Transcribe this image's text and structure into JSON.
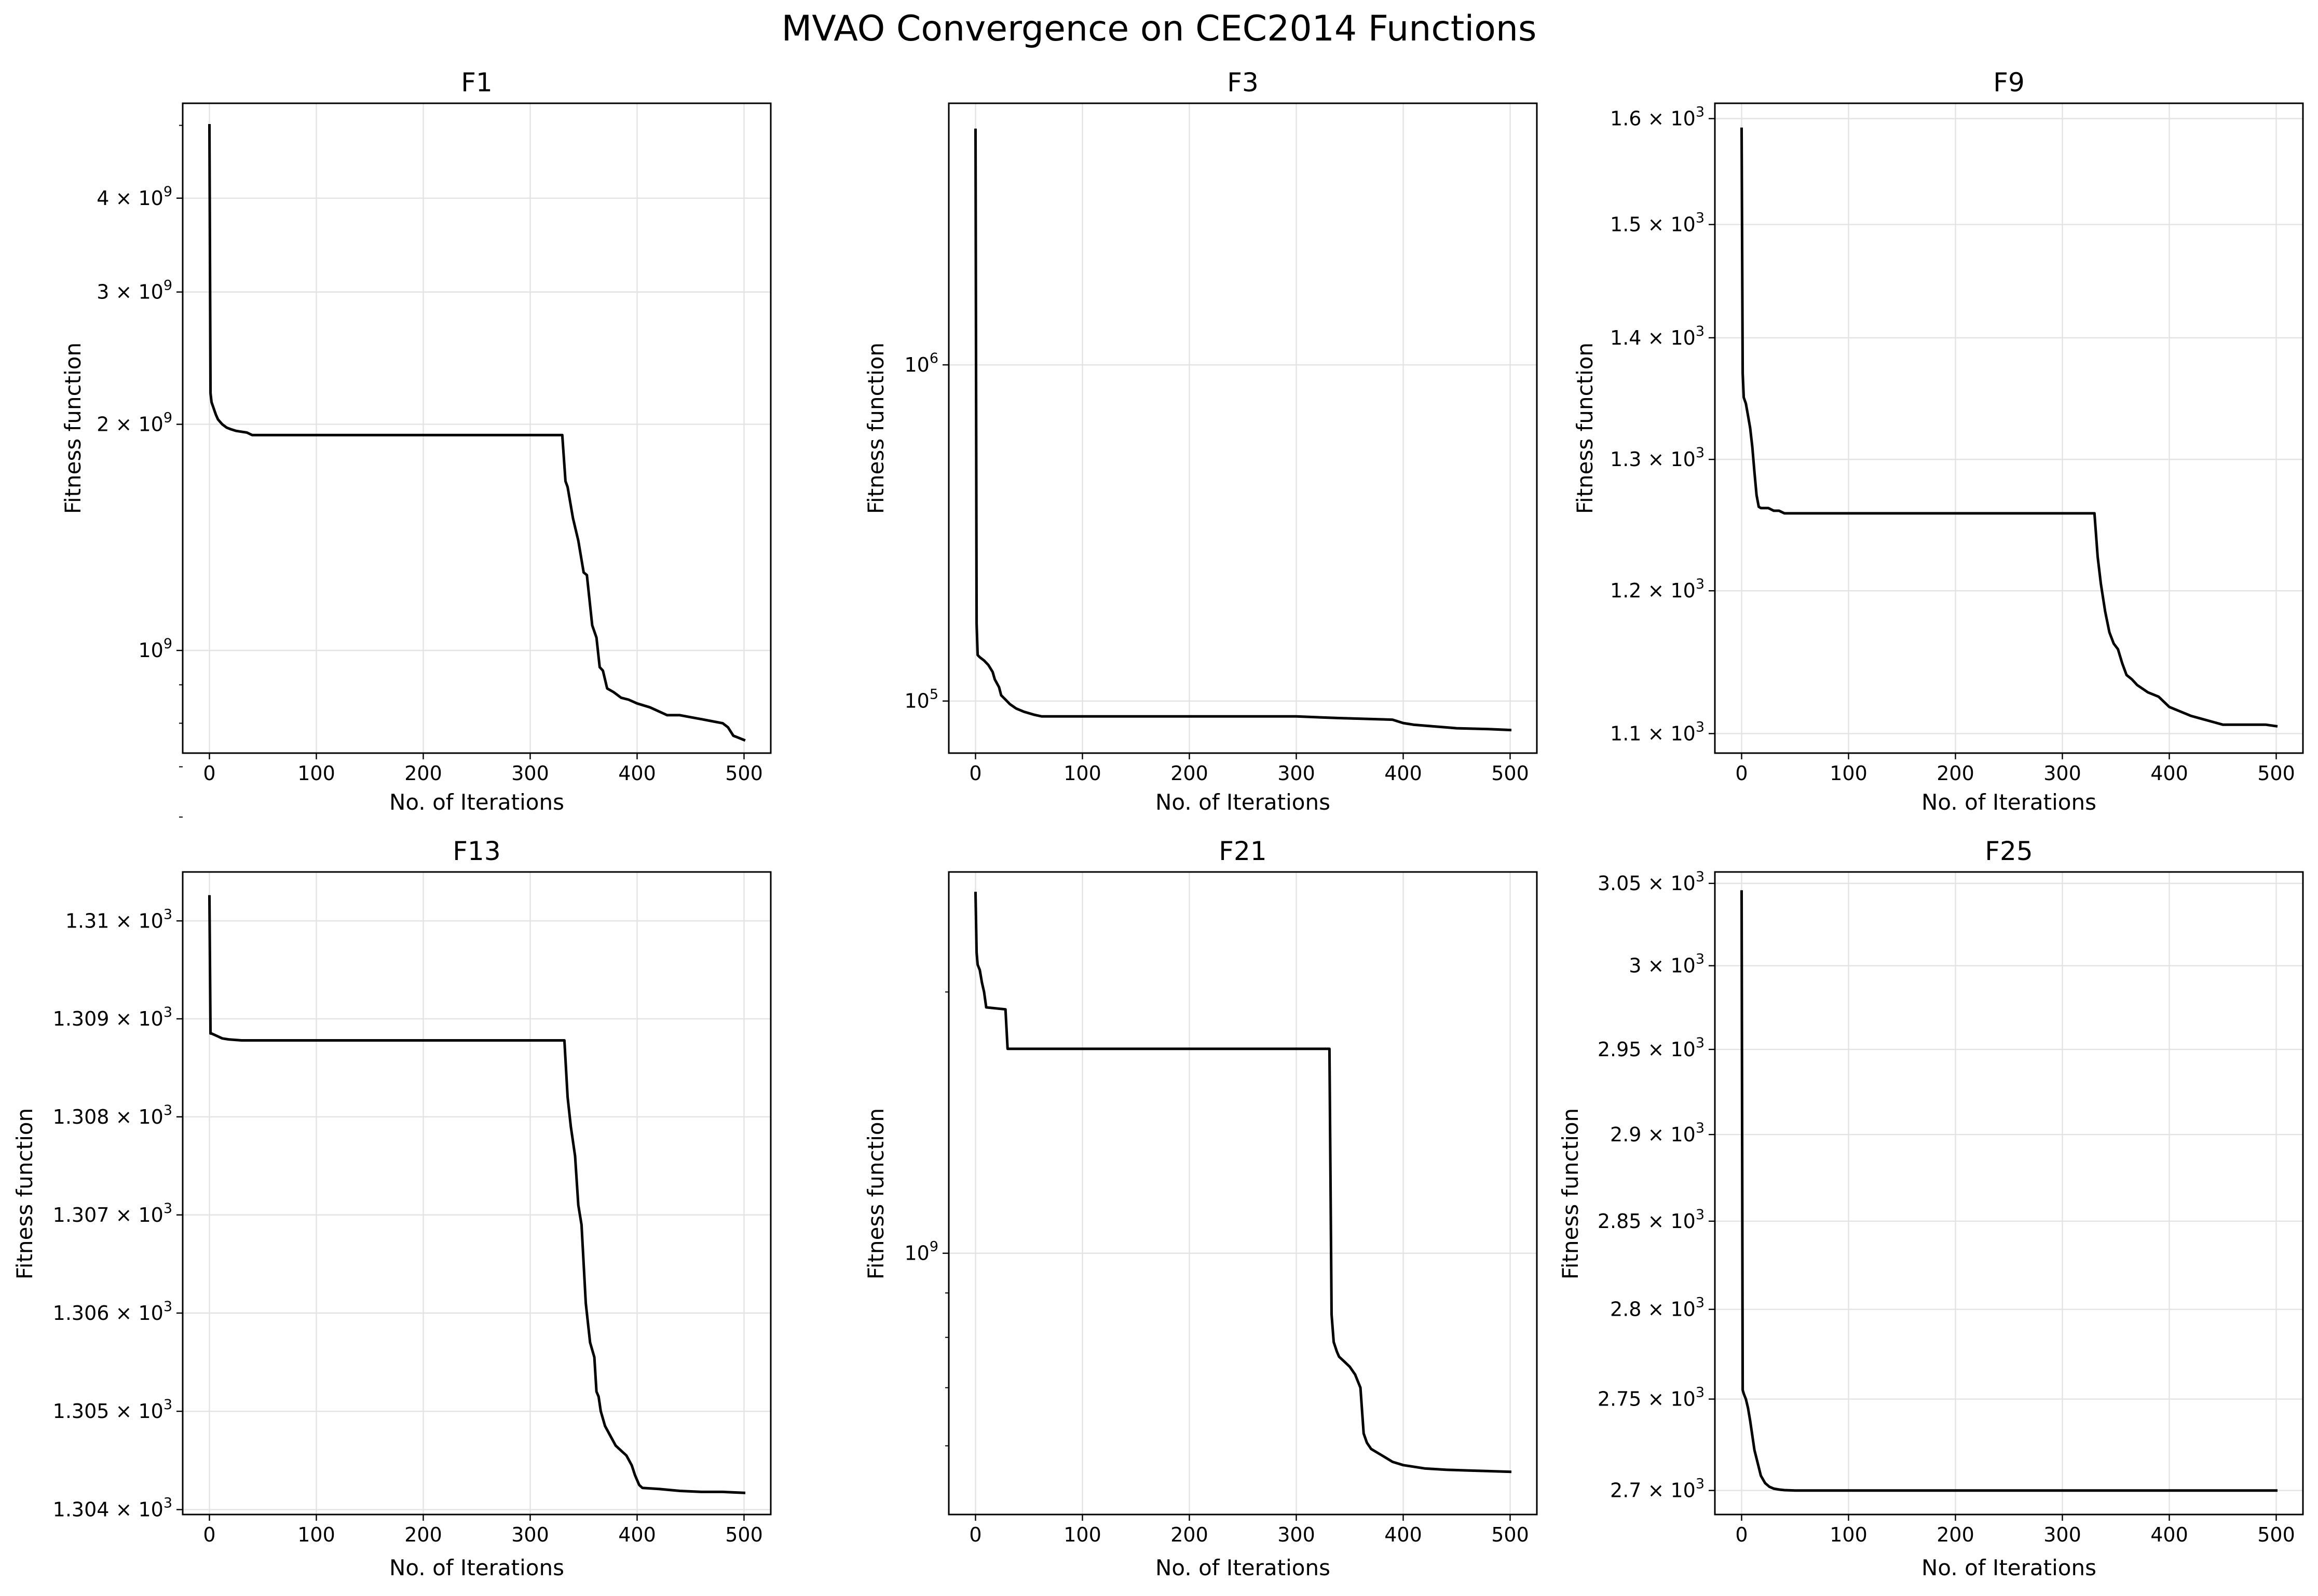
{
  "figure": {
    "title": "MVAO Convergence on CEC2014 Functions"
  },
  "chart_data": [
    {
      "type": "line",
      "title": "F1",
      "xlabel": "No. of Iterations",
      "ylabel": "Fitness function",
      "xlim": [
        -25,
        525
      ],
      "ylim": [
        730000000,
        5350000000
      ],
      "yscale": "log",
      "grid": true,
      "xticks": [
        0,
        100,
        200,
        300,
        400,
        500
      ],
      "xtick_labels": [
        "0",
        "100",
        "200",
        "300",
        "400",
        "500"
      ],
      "yticks": [
        1000000000,
        2000000000,
        3000000000,
        4000000000
      ],
      "ytick_labels": [
        {
          "mant": "",
          "exp": "9"
        },
        {
          "mant": "2",
          "exp": "9"
        },
        {
          "mant": "3",
          "exp": "9"
        },
        {
          "mant": "4",
          "exp": "9"
        }
      ],
      "yminor": [
        600000000,
        700000000,
        800000000,
        900000000,
        5000000000
      ],
      "series": [
        {
          "x": [
            0,
            1,
            2,
            4,
            6,
            8,
            12,
            16,
            20,
            25,
            30,
            35,
            40,
            50,
            330,
            333,
            335,
            340,
            345,
            350,
            353,
            358,
            362,
            365,
            368,
            372,
            378,
            385,
            392,
            400,
            412,
            420,
            428,
            440,
            450,
            460,
            470,
            480,
            485,
            490,
            495,
            500
          ],
          "y": [
            5000000000,
            2200000000,
            2140000000,
            2100000000,
            2060000000,
            2030000000,
            2000000000,
            1980000000,
            1970000000,
            1960000000,
            1955000000,
            1950000000,
            1935000000,
            1935000000,
            1935000000,
            1680000000,
            1650000000,
            1500000000,
            1400000000,
            1270000000,
            1260000000,
            1080000000,
            1040000000,
            950000000,
            940000000,
            890000000,
            880000000,
            865000000,
            860000000,
            850000000,
            840000000,
            830000000,
            820000000,
            820000000,
            815000000,
            810000000,
            805000000,
            800000000,
            790000000,
            770000000,
            765000000,
            760000000
          ]
        }
      ]
    },
    {
      "type": "line",
      "title": "F3",
      "xlabel": "No. of Iterations",
      "ylabel": "Fitness function",
      "xlim": [
        -25,
        525
      ],
      "ylim": [
        70000,
        6000000
      ],
      "yscale": "log",
      "grid": true,
      "xticks": [
        0,
        100,
        200,
        300,
        400,
        500
      ],
      "xtick_labels": [
        "0",
        "100",
        "200",
        "300",
        "400",
        "500"
      ],
      "yticks": [
        100000,
        1000000
      ],
      "ytick_labels": [
        {
          "mant": "",
          "exp": "5"
        },
        {
          "mant": "",
          "exp": "6"
        }
      ],
      "yminor": [],
      "series": [
        {
          "x": [
            0,
            1,
            2,
            4,
            8,
            12,
            16,
            18,
            22,
            24,
            28,
            32,
            38,
            45,
            55,
            62,
            100,
            200,
            300,
            340,
            390,
            400,
            410,
            430,
            450,
            480,
            500
          ],
          "y": [
            5000000,
            170000,
            137000,
            135000,
            132000,
            128000,
            122000,
            116000,
            110000,
            104000,
            101000,
            98000,
            95000,
            93000,
            91000,
            90000,
            90000,
            90000,
            90000,
            89000,
            88000,
            86000,
            85000,
            84000,
            83000,
            82500,
            82000
          ]
        }
      ]
    },
    {
      "type": "line",
      "title": "F9",
      "xlabel": "No. of Iterations",
      "ylabel": "Fitness function",
      "xlim": [
        -25,
        525
      ],
      "ylim": [
        1087,
        1615
      ],
      "yscale": "log",
      "grid": true,
      "xticks": [
        0,
        100,
        200,
        300,
        400,
        500
      ],
      "xtick_labels": [
        "0",
        "100",
        "200",
        "300",
        "400",
        "500"
      ],
      "yticks": [
        1100,
        1200,
        1300,
        1400,
        1500,
        1600
      ],
      "ytick_labels": [
        {
          "mant": "1.1",
          "exp": "3"
        },
        {
          "mant": "1.2",
          "exp": "3"
        },
        {
          "mant": "1.3",
          "exp": "3"
        },
        {
          "mant": "1.4",
          "exp": "3"
        },
        {
          "mant": "1.5",
          "exp": "3"
        },
        {
          "mant": "1.6",
          "exp": "3"
        }
      ],
      "yminor": [],
      "series": [
        {
          "x": [
            0,
            1,
            2,
            4,
            6,
            8,
            10,
            12,
            14,
            16,
            18,
            20,
            25,
            30,
            35,
            40,
            50,
            330,
            333,
            336,
            340,
            344,
            348,
            352,
            356,
            360,
            365,
            370,
            380,
            390,
            400,
            410,
            420,
            430,
            440,
            450,
            460,
            470,
            480,
            490,
            500
          ],
          "y": [
            1590,
            1370,
            1350,
            1345,
            1335,
            1325,
            1310,
            1290,
            1272,
            1263,
            1262,
            1262,
            1262,
            1260,
            1260,
            1258,
            1258,
            1258,
            1225,
            1205,
            1185,
            1170,
            1162,
            1158,
            1148,
            1140,
            1137,
            1133,
            1128,
            1125,
            1118,
            1115,
            1112,
            1110,
            1108,
            1106,
            1106,
            1106,
            1106,
            1106,
            1105
          ]
        }
      ]
    },
    {
      "type": "line",
      "title": "F13",
      "xlabel": "No. of Iterations",
      "ylabel": "Fitness function",
      "xlim": [
        -25,
        525
      ],
      "ylim": [
        1303.95,
        1310.5
      ],
      "yscale": "log",
      "grid": true,
      "xticks": [
        0,
        100,
        200,
        300,
        400,
        500
      ],
      "xtick_labels": [
        "0",
        "100",
        "200",
        "300",
        "400",
        "500"
      ],
      "yticks": [
        1304,
        1305,
        1306,
        1307,
        1308,
        1309,
        1310
      ],
      "ytick_labels": [
        {
          "mant": "1.304",
          "exp": "3"
        },
        {
          "mant": "1.305",
          "exp": "3"
        },
        {
          "mant": "1.306",
          "exp": "3"
        },
        {
          "mant": "1.307",
          "exp": "3"
        },
        {
          "mant": "1.308",
          "exp": "3"
        },
        {
          "mant": "1.309",
          "exp": "3"
        },
        {
          "mant": "1.31",
          "exp": "3"
        }
      ],
      "yminor": [],
      "series": [
        {
          "x": [
            0,
            1,
            2,
            8,
            12,
            18,
            30,
            40,
            332,
            335,
            338,
            342,
            345,
            348,
            350,
            352,
            356,
            360,
            362,
            364,
            366,
            370,
            375,
            380,
            385,
            390,
            395,
            398,
            400,
            402,
            405,
            420,
            430,
            440,
            460,
            480,
            500
          ],
          "y": [
            1310.25,
            1308.85,
            1308.85,
            1308.82,
            1308.8,
            1308.79,
            1308.78,
            1308.78,
            1308.78,
            1308.2,
            1307.9,
            1307.6,
            1307.1,
            1306.9,
            1306.5,
            1306.1,
            1305.7,
            1305.55,
            1305.2,
            1305.15,
            1305.0,
            1304.85,
            1304.75,
            1304.65,
            1304.6,
            1304.55,
            1304.45,
            1304.35,
            1304.3,
            1304.25,
            1304.22,
            1304.21,
            1304.2,
            1304.19,
            1304.18,
            1304.18,
            1304.17
          ]
        }
      ]
    },
    {
      "type": "line",
      "title": "F21",
      "xlabel": "No. of Iterations",
      "ylabel": "Fitness function",
      "xlim": [
        -25,
        525
      ],
      "ylim": [
        500000000,
        2750000000
      ],
      "yscale": "log",
      "grid": true,
      "xticks": [
        0,
        100,
        200,
        300,
        400,
        500
      ],
      "xtick_labels": [
        "0",
        "100",
        "200",
        "300",
        "400",
        "500"
      ],
      "yticks": [
        1000000000
      ],
      "ytick_labels": [
        {
          "mant": "",
          "exp": "9"
        }
      ],
      "yminor": [
        600000000,
        700000000,
        800000000,
        900000000,
        2000000000
      ],
      "series": [
        {
          "x": [
            0,
            1,
            2,
            4,
            6,
            8,
            10,
            28,
            30,
            331,
            333,
            335,
            338,
            340,
            345,
            350,
            355,
            360,
            363,
            366,
            370,
            380,
            390,
            400,
            420,
            440,
            460,
            480,
            500
          ],
          "y": [
            2600000000,
            2220000000,
            2150000000,
            2120000000,
            2050000000,
            2000000000,
            1920000000,
            1910000000,
            1720000000,
            1720000000,
            850000000,
            790000000,
            770000000,
            760000000,
            750000000,
            740000000,
            725000000,
            700000000,
            620000000,
            605000000,
            595000000,
            585000000,
            575000000,
            570000000,
            565000000,
            563000000,
            562000000,
            561000000,
            560000000
          ]
        }
      ]
    },
    {
      "type": "line",
      "title": "F25",
      "xlabel": "No. of Iterations",
      "ylabel": "Fitness function",
      "xlim": [
        -25,
        525
      ],
      "ylim": [
        2687,
        3057
      ],
      "yscale": "log",
      "grid": true,
      "xticks": [
        0,
        100,
        200,
        300,
        400,
        500
      ],
      "xtick_labels": [
        "0",
        "100",
        "200",
        "300",
        "400",
        "500"
      ],
      "yticks": [
        2700,
        2750,
        2800,
        2850,
        2900,
        2950,
        3000,
        3050
      ],
      "ytick_labels": [
        {
          "mant": "2.7",
          "exp": "3"
        },
        {
          "mant": "2.75",
          "exp": "3"
        },
        {
          "mant": "2.8",
          "exp": "3"
        },
        {
          "mant": "2.85",
          "exp": "3"
        },
        {
          "mant": "2.9",
          "exp": "3"
        },
        {
          "mant": "2.95",
          "exp": "3"
        },
        {
          "mant": "3",
          "exp": "3"
        },
        {
          "mant": "3.05",
          "exp": "3"
        }
      ],
      "yminor": [],
      "series": [
        {
          "x": [
            0,
            1,
            2,
            4,
            6,
            8,
            10,
            12,
            15,
            18,
            22,
            26,
            30,
            35,
            40,
            50,
            100,
            200,
            300,
            400,
            500
          ],
          "y": [
            3045,
            2755,
            2753,
            2750,
            2745,
            2738,
            2730,
            2722,
            2715,
            2708,
            2704,
            2702,
            2701,
            2700.5,
            2700.2,
            2700,
            2700,
            2700,
            2700,
            2700,
            2700
          ]
        }
      ]
    }
  ]
}
